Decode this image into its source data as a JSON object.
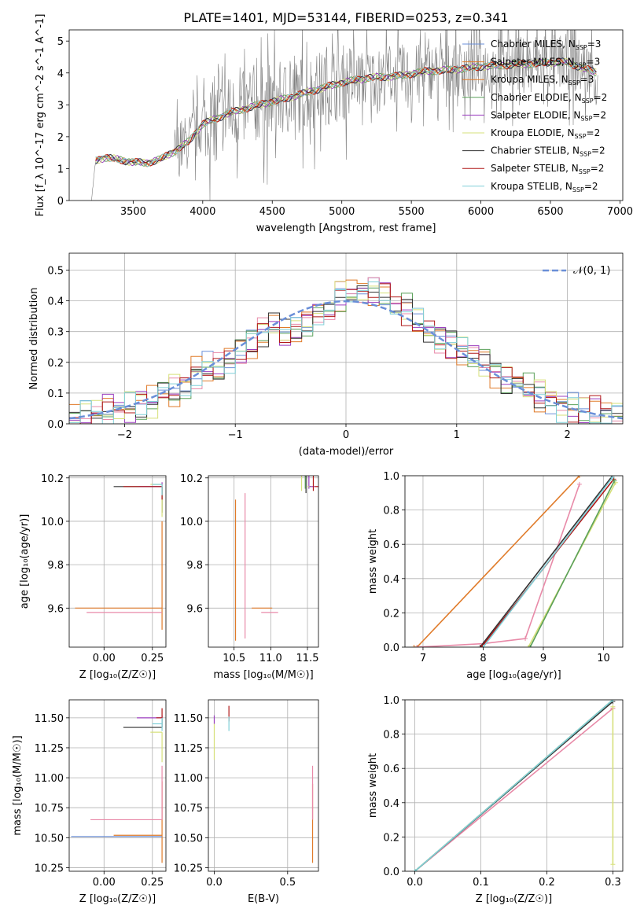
{
  "chart_data": [
    {
      "id": "spectrum",
      "type": "line",
      "title": "PLATE=1401, MJD=53144, FIBERID=0253, z=0.341",
      "xlabel": "wavelength [Angstrom, rest frame]",
      "ylabel": "Flux [f_λ 10^-17 erg cm^-2 s^-1 A^-1]",
      "xlim": [
        3040,
        7020
      ],
      "ylim": [
        0,
        5.35
      ],
      "xticks": [
        3500,
        4000,
        4500,
        5000,
        5500,
        6000,
        6500,
        7000
      ],
      "yticks": [
        0,
        1,
        2,
        3,
        4,
        5
      ],
      "grid": false,
      "legend_position": "top-right",
      "continuum": {
        "x": [
          3200,
          3230,
          3300,
          3400,
          3500,
          3600,
          3700,
          3800,
          3900,
          4000,
          4200,
          4400,
          4600,
          4800,
          5000,
          5200,
          5400,
          5600,
          5800,
          6000,
          6200,
          6400,
          6600,
          6840
        ],
        "y": [
          0,
          1.25,
          1.35,
          1.28,
          1.2,
          1.18,
          1.3,
          1.55,
          1.85,
          2.4,
          2.75,
          3.0,
          3.2,
          3.45,
          3.7,
          3.85,
          3.9,
          4.05,
          4.1,
          4.2,
          4.25,
          4.3,
          4.35,
          4.0
        ]
      },
      "series": [
        {
          "label": "Chabrier MILES, N",
          "sub": "SSP",
          "suffix": "=3",
          "color": "#6a8fd8"
        },
        {
          "label": "Salpeter MILES, N",
          "sub": "SSP",
          "suffix": "=3",
          "color": "#e07b2a"
        },
        {
          "label": "Kroupa MILES, N",
          "sub": "SSP",
          "suffix": "=3",
          "color": "#e07b2a"
        },
        {
          "label": "Chabrier ELODIE, N",
          "sub": "SSP",
          "suffix": "=2",
          "color": "#5aa05a"
        },
        {
          "label": "Salpeter ELODIE, N",
          "sub": "SSP",
          "suffix": "=2",
          "color": "#9b3fbf"
        },
        {
          "label": "Kroupa ELODIE, N",
          "sub": "SSP",
          "suffix": "=2",
          "color": "#d6e07a"
        },
        {
          "label": "Chabrier STELIB, N",
          "sub": "SSP",
          "suffix": "=2",
          "color": "#333333"
        },
        {
          "label": "Salpeter STELIB, N",
          "sub": "SSP",
          "suffix": "=2",
          "color": "#b01818"
        },
        {
          "label": "Kroupa STELIB, N",
          "sub": "SSP",
          "suffix": "=2",
          "color": "#80d0d8"
        }
      ]
    },
    {
      "id": "residuals",
      "type": "line",
      "xlabel": "(data-model)/error",
      "ylabel": "Normed distribution",
      "xlim": [
        -2.5,
        2.5
      ],
      "ylim": [
        0,
        0.555
      ],
      "xticks": [
        -2,
        -1,
        0,
        1,
        2
      ],
      "yticks": [
        0.0,
        0.1,
        0.2,
        0.3,
        0.4,
        0.5
      ],
      "grid": true,
      "legend_position": "top-right",
      "legend": "𝒩(0, 1)",
      "normal_color": "#6a8fd8",
      "hist_x": [
        -2.5,
        -2.4,
        -2.3,
        -2.2,
        -2.1,
        -2.0,
        -1.9,
        -1.8,
        -1.7,
        -1.6,
        -1.5,
        -1.4,
        -1.3,
        -1.2,
        -1.1,
        -1.0,
        -0.9,
        -0.8,
        -0.7,
        -0.6,
        -0.5,
        -0.4,
        -0.3,
        -0.2,
        -0.1,
        0.0,
        0.1,
        0.2,
        0.3,
        0.4,
        0.5,
        0.6,
        0.7,
        0.8,
        0.9,
        1.0,
        1.1,
        1.2,
        1.3,
        1.4,
        1.5,
        1.6,
        1.7,
        1.8,
        1.9,
        2.0,
        2.1,
        2.2,
        2.3,
        2.4
      ],
      "hist_y": [
        0.03,
        0.025,
        0.03,
        0.04,
        0.05,
        0.06,
        0.065,
        0.07,
        0.09,
        0.11,
        0.14,
        0.17,
        0.18,
        0.19,
        0.21,
        0.23,
        0.26,
        0.3,
        0.33,
        0.29,
        0.31,
        0.34,
        0.37,
        0.36,
        0.41,
        0.43,
        0.42,
        0.44,
        0.43,
        0.38,
        0.37,
        0.33,
        0.31,
        0.28,
        0.27,
        0.24,
        0.22,
        0.2,
        0.17,
        0.15,
        0.13,
        0.11,
        0.09,
        0.07,
        0.06,
        0.05,
        0.04,
        0.035,
        0.03,
        0.025
      ],
      "hist_colors": [
        "#6a8fd8",
        "#e07b2a",
        "#e88aa8",
        "#5aa05a",
        "#9b3fbf",
        "#d6e07a",
        "#333333",
        "#b01818",
        "#80d0d8"
      ]
    },
    {
      "id": "age_vs_Z",
      "type": "scatter",
      "xlabel": "Z [log₁₀(Z/Z☉)]",
      "ylabel": "age  [log₁₀(age/yr)]",
      "xlim": [
        -0.18,
        0.32
      ],
      "ylim": [
        9.42,
        10.21
      ],
      "xticks": [
        0.0,
        0.25
      ],
      "xticklabels": [
        "0.00",
        "0.25"
      ],
      "yticks": [
        9.6,
        9.8,
        10.0,
        10.2
      ],
      "grid": true,
      "points": [
        {
          "x": 0.3,
          "y": 9.6,
          "ex": [
            -0.45,
            0.0
          ],
          "ey": [
            0.1,
            0.4
          ],
          "color": "#e07b2a"
        },
        {
          "x": 0.3,
          "y": 9.58,
          "ex": [
            -0.39,
            0.0
          ],
          "ey": [
            0.0,
            0.0
          ],
          "color": "#e88aa8"
        },
        {
          "x": 0.3,
          "y": 10.16,
          "ex": [
            -0.25,
            0.0
          ],
          "ey": [
            0.12,
            0.0
          ],
          "color": "#333333"
        },
        {
          "x": 0.3,
          "y": 10.16,
          "ex": [
            -0.12,
            0.0
          ],
          "ey": [
            0.0,
            0.02
          ],
          "color": "#9b3fbf"
        },
        {
          "x": 0.3,
          "y": 10.17,
          "ex": [
            -0.06,
            0.0
          ],
          "ey": [
            0.15,
            0.0
          ],
          "color": "#d6e07a"
        },
        {
          "x": 0.3,
          "y": 10.16,
          "ex": [
            -0.2,
            0.0
          ],
          "ey": [
            0.06,
            0.0
          ],
          "color": "#b01818"
        },
        {
          "x": 0.3,
          "y": 10.17,
          "ex": [
            -0.05,
            0.0
          ],
          "ey": [
            0.05,
            0.0
          ],
          "color": "#80d0d8"
        }
      ]
    },
    {
      "id": "age_vs_mass",
      "type": "scatter",
      "xlabel": "mass [log₁₀(M/M☉)]",
      "ylabel": "",
      "xlim": [
        10.15,
        11.65
      ],
      "ylim": [
        9.42,
        10.21
      ],
      "xticks": [
        10.5,
        11.0,
        11.5
      ],
      "yticks": [
        9.6,
        9.8,
        10.0,
        10.2
      ],
      "grid": true,
      "points": [
        {
          "x": 10.52,
          "y": 9.6,
          "ex": [
            0.22,
            0.5
          ],
          "ey": [
            0.15,
            0.5
          ],
          "color": "#e07b2a"
        },
        {
          "x": 10.65,
          "y": 9.58,
          "ex": [
            0.22,
            0.45
          ],
          "ey": [
            0.12,
            0.55
          ],
          "color": "#e88aa8"
        },
        {
          "x": 11.48,
          "y": 10.16,
          "ex": [
            0.05,
            0.06
          ],
          "ey": [
            0.03,
            0.06
          ],
          "color": "#333333"
        },
        {
          "x": 11.52,
          "y": 10.16,
          "ex": [
            0.08,
            0.02
          ],
          "ey": [
            0.01,
            0.07
          ],
          "color": "#9b3fbf"
        },
        {
          "x": 11.42,
          "y": 10.16,
          "ex": [
            0.08,
            0.1
          ],
          "ey": [
            0.02,
            0.08
          ],
          "color": "#d6e07a"
        },
        {
          "x": 11.58,
          "y": 10.16,
          "ex": [
            0.15,
            0.02
          ],
          "ey": [
            0.02,
            0.06
          ],
          "color": "#b01818"
        },
        {
          "x": 11.47,
          "y": 10.17,
          "ex": [
            0.06,
            0.06
          ],
          "ey": [
            0.02,
            0.08
          ],
          "color": "#5aa05a"
        }
      ]
    },
    {
      "id": "cumulative_age",
      "type": "line",
      "xlabel": "age  [log₁₀(age/yr)]",
      "ylabel": "mass weight",
      "xlim": [
        6.7,
        10.32
      ],
      "ylim": [
        0,
        1
      ],
      "xticks": [
        7,
        8,
        9,
        10
      ],
      "yticks": [
        0.0,
        0.2,
        0.4,
        0.6,
        0.8,
        1.0
      ],
      "grid": true,
      "series": [
        {
          "color": "#e07b2a",
          "x": [
            6.85,
            6.9,
            9.6
          ],
          "y": [
            0.0,
            0.0,
            1.0
          ]
        },
        {
          "color": "#e88aa8",
          "x": [
            6.9,
            8.0,
            8.7,
            9.6
          ],
          "y": [
            0.0,
            0.02,
            0.05,
            0.95
          ]
        },
        {
          "color": "#333333",
          "x": [
            7.95,
            10.15
          ],
          "y": [
            0.0,
            1.0
          ]
        },
        {
          "color": "#b01818",
          "x": [
            7.97,
            10.17
          ],
          "y": [
            0.0,
            0.98
          ]
        },
        {
          "color": "#80d0d8",
          "x": [
            8.0,
            10.15
          ],
          "y": [
            0.0,
            0.99
          ]
        },
        {
          "color": "#d6e07a",
          "x": [
            8.75,
            10.2
          ],
          "y": [
            0.0,
            0.96
          ]
        },
        {
          "color": "#5aa05a",
          "x": [
            8.78,
            10.18
          ],
          "y": [
            0.0,
            0.97
          ]
        }
      ]
    },
    {
      "id": "mass_vs_Z",
      "type": "scatter",
      "xlabel": "Z [log₁₀(Z/Z☉)]",
      "ylabel": "mass [log₁₀(M/M☉)]",
      "xlim": [
        -0.18,
        0.32
      ],
      "ylim": [
        10.22,
        11.65
      ],
      "xticks": [
        0.0,
        0.25
      ],
      "xticklabels": [
        "0.00",
        "0.25"
      ],
      "yticks": [
        10.25,
        10.5,
        10.75,
        11.0,
        11.25,
        11.5
      ],
      "grid": true,
      "points": [
        {
          "x": 0.3,
          "y": 10.52,
          "ex": [
            -0.25,
            0.0
          ],
          "ey": [
            0.23,
            0.45
          ],
          "color": "#e07b2a"
        },
        {
          "x": 0.3,
          "y": 10.65,
          "ex": [
            -0.37,
            0.0
          ],
          "ey": [
            0.0,
            0.45
          ],
          "color": "#e88aa8"
        },
        {
          "x": 0.3,
          "y": 10.51,
          "ex": [
            -0.47,
            0.0
          ],
          "ey": [
            0.0,
            0.0
          ],
          "color": "#6a8fd8"
        },
        {
          "x": 0.3,
          "y": 11.42,
          "ex": [
            -0.2,
            0.0
          ],
          "ey": [
            0.0,
            0.08
          ],
          "color": "#333333"
        },
        {
          "x": 0.3,
          "y": 11.5,
          "ex": [
            -0.13,
            0.0
          ],
          "ey": [
            0.0,
            0.02
          ],
          "color": "#9b3fbf"
        },
        {
          "x": 0.3,
          "y": 11.38,
          "ex": [
            -0.06,
            0.0
          ],
          "ey": [
            0.25,
            0.0
          ],
          "color": "#d6e07a"
        },
        {
          "x": 0.3,
          "y": 11.5,
          "ex": [
            -0.03,
            0.0
          ],
          "ey": [
            0.0,
            0.08
          ],
          "color": "#b01818"
        },
        {
          "x": 0.3,
          "y": 11.45,
          "ex": [
            -0.05,
            0.0
          ],
          "ey": [
            0.06,
            0.05
          ],
          "color": "#80d0d8"
        }
      ]
    },
    {
      "id": "mass_vs_EBV",
      "type": "scatter",
      "xlabel": "E(B-V)",
      "ylabel": "",
      "xlim": [
        -0.04,
        0.71
      ],
      "ylim": [
        10.22,
        11.65
      ],
      "xticks": [
        0.0,
        0.5
      ],
      "xticklabels": [
        "0.0",
        "0.5"
      ],
      "yticks": [
        10.25,
        10.5,
        10.75,
        11.0,
        11.25,
        11.5
      ],
      "grid": true,
      "points": [
        {
          "x": 0.67,
          "y": 10.52,
          "ex": [
            0.0,
            0.0
          ],
          "ey": [
            0.23,
            0.43
          ],
          "color": "#e07b2a"
        },
        {
          "x": 0.67,
          "y": 10.65,
          "ex": [
            0.0,
            0.0
          ],
          "ey": [
            0.0,
            0.45
          ],
          "color": "#e88aa8"
        },
        {
          "x": 0.0,
          "y": 11.45,
          "ex": [
            0.0,
            0.0
          ],
          "ey": [
            0.0,
            0.07
          ],
          "color": "#9b3fbf"
        },
        {
          "x": 0.0,
          "y": 11.35,
          "ex": [
            0.0,
            0.0
          ],
          "ey": [
            0.2,
            0.1
          ],
          "color": "#d6e07a"
        },
        {
          "x": 0.1,
          "y": 11.52,
          "ex": [
            0.0,
            0.0
          ],
          "ey": [
            0.05,
            0.08
          ],
          "color": "#b01818"
        },
        {
          "x": 0.1,
          "y": 11.45,
          "ex": [
            0.0,
            0.0
          ],
          "ey": [
            0.06,
            0.06
          ],
          "color": "#80d0d8"
        }
      ]
    },
    {
      "id": "cumulative_Z",
      "type": "line",
      "xlabel": "Z [log₁₀(Z/Z☉)]",
      "ylabel": "mass weight",
      "xlim": [
        -0.015,
        0.315
      ],
      "ylim": [
        0,
        1
      ],
      "xticks": [
        0.0,
        0.1,
        0.2,
        0.3
      ],
      "yticks": [
        0.0,
        0.2,
        0.4,
        0.6,
        0.8,
        1.0
      ],
      "grid": true,
      "series": [
        {
          "color": "#e88aa8",
          "x": [
            0.0,
            0.3,
            0.3
          ],
          "y": [
            0.0,
            0.95,
            0.95
          ]
        },
        {
          "color": "#e07b2a",
          "x": [
            0.0,
            0.3
          ],
          "y": [
            0.0,
            1.0
          ]
        },
        {
          "color": "#333333",
          "x": [
            0.0,
            0.3
          ],
          "y": [
            0.0,
            0.99
          ]
        },
        {
          "color": "#5aa05a",
          "x": [
            0.0,
            0.3
          ],
          "y": [
            0.0,
            1.0
          ]
        },
        {
          "color": "#80d0d8",
          "x": [
            0.0,
            0.3
          ],
          "y": [
            0.0,
            1.0
          ]
        },
        {
          "color": "#d6e07a",
          "x": [
            0.3,
            0.3
          ],
          "y": [
            0.04,
            0.96
          ]
        }
      ]
    }
  ]
}
